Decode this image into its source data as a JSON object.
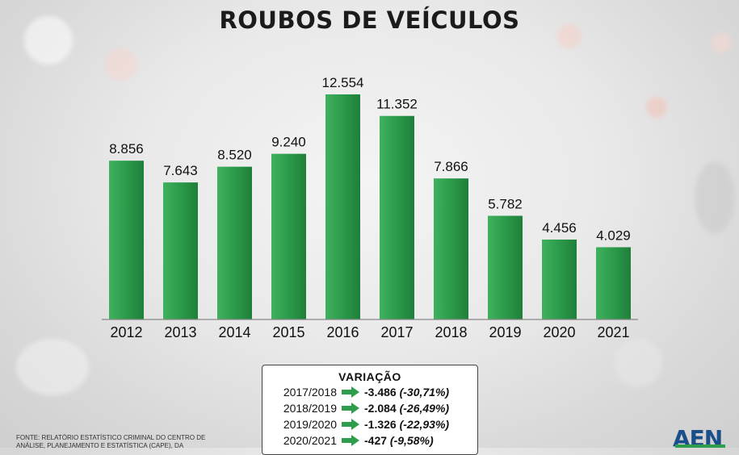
{
  "title": "ROUBOS DE VEÍCULOS",
  "chart_data": {
    "type": "bar",
    "title": "ROUBOS DE VEÍCULOS",
    "categories": [
      "2012",
      "2013",
      "2014",
      "2015",
      "2016",
      "2017",
      "2018",
      "2019",
      "2020",
      "2021"
    ],
    "values": [
      8856,
      7643,
      8520,
      9240,
      12554,
      11352,
      7866,
      5782,
      4456,
      4029
    ],
    "value_labels": [
      "8.856",
      "7.643",
      "8.520",
      "9.240",
      "12.554",
      "11.352",
      "7.866",
      "5.782",
      "4.456",
      "4.029"
    ],
    "ylim": [
      0,
      12554
    ],
    "grid": false,
    "bar_color": "#2e9e4c"
  },
  "variation": {
    "title": "VARIAÇÃO",
    "rows": [
      {
        "period": "2017/2018",
        "value": "-3.486",
        "pct": "(-30,71%)"
      },
      {
        "period": "2018/2019",
        "value": "-2.084",
        "pct": "(-26,49%)"
      },
      {
        "period": "2019/2020",
        "value": "-1.326",
        "pct": "(-22,93%)"
      },
      {
        "period": "2020/2021",
        "value": "-427",
        "pct": "(-9,58%)"
      }
    ]
  },
  "source": "FONTE: RELATÓRIO ESTATÍSTICO CRIMINAL DO CENTRO DE ANÁLISE, PLANEJAMENTO E ESTATÍSTICA (CAPE), DA",
  "logo": "AEN"
}
